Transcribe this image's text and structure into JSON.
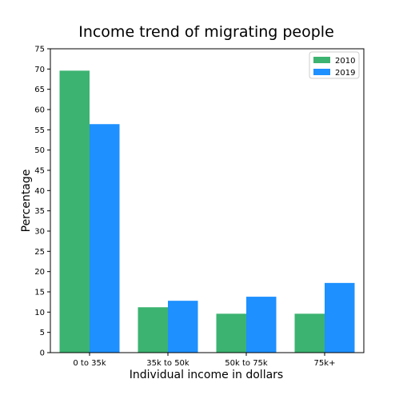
{
  "chart_data": {
    "type": "bar",
    "title": "Income trend of migrating people",
    "xlabel": "Individual income in dollars",
    "ylabel": "Percentage",
    "categories": [
      "0 to 35k",
      "35k to 50k",
      "50k to 75k",
      "75k+"
    ],
    "series": [
      {
        "name": "2010",
        "color": "#3cb371",
        "values": [
          69.6,
          11.2,
          9.6,
          9.6
        ]
      },
      {
        "name": "2019",
        "color": "#1e90ff",
        "values": [
          56.4,
          12.8,
          13.8,
          17.2
        ]
      }
    ],
    "ylim": [
      0,
      75
    ],
    "yticks": [
      0,
      5,
      10,
      15,
      20,
      25,
      30,
      35,
      40,
      45,
      50,
      55,
      60,
      65,
      70,
      75
    ],
    "grid": false,
    "legend_position": "top-right"
  }
}
